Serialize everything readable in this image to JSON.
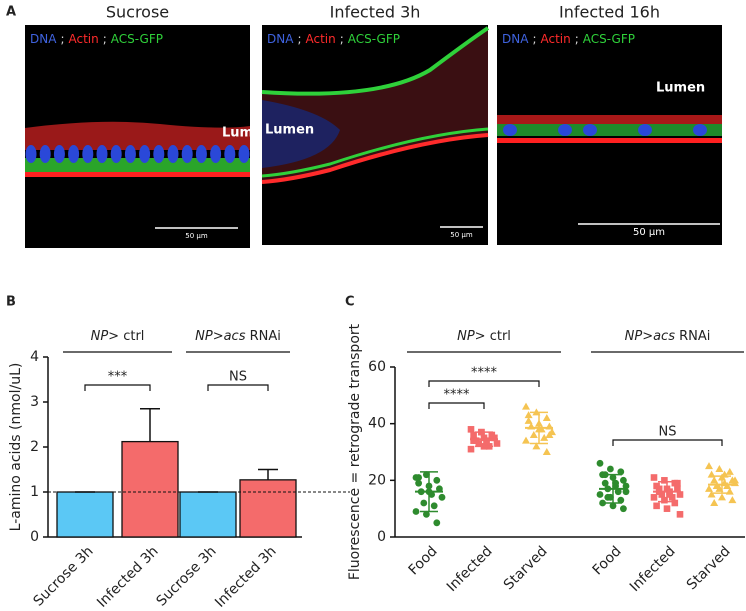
{
  "panel_a": {
    "label": "A",
    "images": [
      {
        "title": "Sucrose",
        "stains": [
          {
            "text": "DNA",
            "color": "#3f63e0"
          },
          {
            "text": ";",
            "color": "#d9d9d9"
          },
          {
            "text": "Actin",
            "color": "#ff2b2b"
          },
          {
            "text": ";",
            "color": "#d9d9d9"
          },
          {
            "text": "ACS-GFP",
            "color": "#2fd13a"
          }
        ],
        "lumen": "Lumen",
        "scale": "50 µm"
      },
      {
        "title": "Infected 3h",
        "stains": [
          {
            "text": "DNA",
            "color": "#3f63e0"
          },
          {
            "text": ";",
            "color": "#d9d9d9"
          },
          {
            "text": "Actin",
            "color": "#ff2b2b"
          },
          {
            "text": ";",
            "color": "#d9d9d9"
          },
          {
            "text": "ACS-GFP",
            "color": "#2fd13a"
          }
        ],
        "lumen": "Lumen",
        "scale": "50 µm"
      },
      {
        "title": "Infected 16h",
        "stains": [
          {
            "text": "DNA",
            "color": "#3f63e0"
          },
          {
            "text": ";",
            "color": "#d9d9d9"
          },
          {
            "text": "Actin",
            "color": "#ff2b2b"
          },
          {
            "text": ";",
            "color": "#d9d9d9"
          },
          {
            "text": "ACS-GFP",
            "color": "#2fd13a"
          }
        ],
        "lumen": "Lumen",
        "scale": "50 µm"
      }
    ]
  },
  "chart_data": [
    {
      "type": "bar",
      "panel_label": "B",
      "ylabel": "L-amino acids (nmol/uL)",
      "categories": [
        "Sucrose 3h",
        "Infected 3h",
        "Sucrose 3h",
        "Infected 3h"
      ],
      "values": [
        1,
        2.12,
        1,
        1.27
      ],
      "errors": [
        0,
        0.73,
        0,
        0.23
      ],
      "colors": [
        "#5bc8f5",
        "#f46b6b",
        "#5bc8f5",
        "#f46b6b"
      ],
      "ylim": [
        0,
        4
      ],
      "yticks": [
        0,
        1,
        2,
        3,
        4
      ],
      "ref_line": 1,
      "groups": [
        {
          "from": 0,
          "to": 1,
          "parts": [
            {
              "text": "NP",
              "italic": true
            },
            {
              "text": "> ctrl"
            }
          ]
        },
        {
          "from": 2,
          "to": 3,
          "parts": [
            {
              "text": "NP",
              "italic": true
            },
            {
              "text": ">"
            },
            {
              "text": "acs",
              "italic": true
            },
            {
              "text": " RNAi"
            }
          ]
        }
      ],
      "significance": [
        {
          "from": 0,
          "to": 1,
          "label": "***"
        },
        {
          "from": 2,
          "to": 3,
          "label": "NS"
        }
      ]
    },
    {
      "type": "scatter",
      "panel_label": "C",
      "ylabel": "Fluorescence = retrograde transport",
      "categories": [
        "Food",
        "Infected",
        "Starved",
        "Food",
        "Infected",
        "Starved"
      ],
      "colors": [
        "#2e8b2e",
        "#f46b6b",
        "#f5c452",
        "#2e8b2e",
        "#f46b6b",
        "#f5c452"
      ],
      "markers": [
        "circle",
        "square",
        "triangle",
        "circle",
        "square",
        "triangle"
      ],
      "points": [
        [
          21,
          22,
          20,
          19,
          18,
          17,
          16,
          15,
          14,
          12,
          11,
          9,
          8,
          5,
          21,
          16
        ],
        [
          38,
          37,
          36,
          36,
          35,
          35,
          34,
          34,
          33,
          33,
          32,
          31,
          37,
          35,
          34,
          32
        ],
        [
          46,
          44,
          42,
          41,
          40,
          39,
          39,
          38,
          37,
          36,
          35,
          34,
          32,
          30,
          43,
          38,
          36
        ],
        [
          26,
          24,
          23,
          22,
          21,
          20,
          19,
          18,
          18,
          17,
          16,
          15,
          14,
          13,
          12,
          11,
          10,
          22,
          19,
          16,
          14
        ],
        [
          21,
          20,
          19,
          18,
          17,
          17,
          16,
          16,
          15,
          15,
          14,
          14,
          13,
          12,
          11,
          10,
          19,
          17,
          15,
          8
        ],
        [
          25,
          24,
          23,
          22,
          21,
          20,
          20,
          19,
          19,
          18,
          18,
          17,
          17,
          16,
          15,
          14,
          13,
          12,
          22,
          20,
          18
        ]
      ],
      "means": [
        16,
        34.5,
        38.5,
        17,
        16,
        18.5
      ],
      "sds": [
        7,
        2.5,
        5.5,
        5,
        3.5,
        3
      ],
      "ylim": [
        0,
        60
      ],
      "yticks": [
        0,
        20,
        40,
        60
      ],
      "groups": [
        {
          "from": 0,
          "to": 2,
          "parts": [
            {
              "text": "NP",
              "italic": true
            },
            {
              "text": "> ctrl"
            }
          ]
        },
        {
          "from": 3,
          "to": 5,
          "parts": [
            {
              "text": "NP",
              "italic": true
            },
            {
              "text": ">"
            },
            {
              "text": "acs",
              "italic": true
            },
            {
              "text": " RNAi"
            }
          ]
        }
      ],
      "significance": [
        {
          "from": 0,
          "to": 1,
          "label": "****"
        },
        {
          "from": 0,
          "to": 2,
          "label": "****"
        },
        {
          "from": 3,
          "to": 5,
          "label": "NS"
        }
      ]
    }
  ]
}
